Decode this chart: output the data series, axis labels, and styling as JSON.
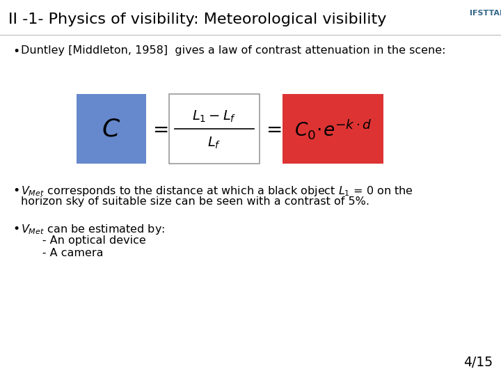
{
  "title": "II -1- Physics of visibility: Meteorological visibility",
  "title_fontsize": 16,
  "bg_color": "#ffffff",
  "title_color": "#000000",
  "bullet1": "Duntley [Middleton, 1958]  gives a law of contrast attenuation in the scene:",
  "blue_box_color": "#6688cc",
  "red_box_color": "#dd3333",
  "formula_box_color": "#ffffff",
  "formula_box_edge": "#999999",
  "sub1": "      - An optical device",
  "sub2": "      - A camera",
  "page_num": "4/15",
  "text_fontsize": 11.5,
  "ifsttar_color": "#336688"
}
